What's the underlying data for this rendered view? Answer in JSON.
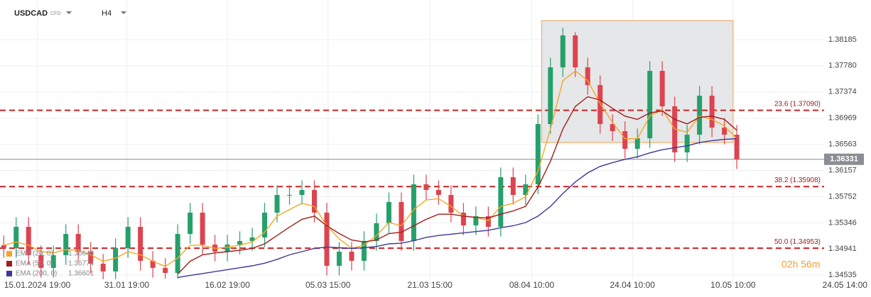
{
  "header": {
    "symbol": "USDCAD",
    "market": "CFD",
    "timeframe": "H4"
  },
  "chart_data": {
    "type": "candlestick",
    "xlim": [
      -0.3,
      69.8
    ],
    "xticks": [
      {
        "value": 2.7,
        "label": "15.01.2024 19:00"
      },
      {
        "value": 9.9,
        "label": "31.01 19:00"
      },
      {
        "value": 18,
        "label": "16.02 19:00"
      },
      {
        "value": 26.1,
        "label": "05.03 15:00"
      },
      {
        "value": 34.3,
        "label": "21.03 15:00"
      },
      {
        "value": 42.5,
        "label": "08.04 10:00"
      },
      {
        "value": 50.6,
        "label": "24.04 10:00"
      },
      {
        "value": 58.7,
        "label": "10.05 10:00"
      },
      {
        "value": 67.7,
        "label": "24.05 14:00"
      }
    ],
    "ylim": [
      1.3446,
      1.388
    ],
    "yticks": [
      1.38185,
      {
        "value": 1.3778,
        "label": "1.37780"
      },
      1.37374,
      1.36969,
      1.36563,
      1.36157,
      1.35752,
      1.35346,
      1.34941,
      1.34535
    ],
    "grid": true,
    "up_color": "#26a06b",
    "down_color": "#dc4450",
    "open": [
      1.35,
      1.34954,
      1.35284,
      1.34844,
      1.34647,
      1.34844,
      1.35174,
      1.34899,
      1.34713,
      1.34592,
      1.34954,
      1.35284,
      1.34757,
      1.34647,
      1.3457,
      1.35174,
      1.35504,
      1.35009,
      1.34899,
      1.35009,
      1.35064,
      1.35119,
      1.35504,
      1.35778,
      1.35778,
      1.35855,
      1.35504,
      1.3468,
      1.34899,
      1.34757,
      1.35064,
      1.35339,
      1.35668,
      1.35064,
      1.35943,
      1.35855,
      1.35778,
      1.35504,
      1.35306,
      1.35449,
      1.35284,
      1.36053,
      1.35778,
      1.35943,
      1.36877,
      1.37756,
      1.38251,
      1.37756,
      1.37481,
      1.36877,
      1.36767,
      1.36493,
      1.36657,
      1.37701,
      1.37152,
      1.36438,
      1.36712,
      1.37317,
      1.36822,
      1.36712
    ],
    "high": [
      1.3515,
      1.35434,
      1.35434,
      1.34994,
      1.34994,
      1.35324,
      1.35324,
      1.35049,
      1.34863,
      1.35104,
      1.35434,
      1.35434,
      1.34907,
      1.34797,
      1.35324,
      1.35654,
      1.35654,
      1.35159,
      1.35159,
      1.35214,
      1.35269,
      1.35654,
      1.35928,
      1.35928,
      1.36005,
      1.36005,
      1.35654,
      1.35049,
      1.35049,
      1.35214,
      1.35489,
      1.35818,
      1.35818,
      1.36093,
      1.36093,
      1.36005,
      1.35928,
      1.35654,
      1.35599,
      1.35599,
      1.36203,
      1.36203,
      1.36093,
      1.37027,
      1.37906,
      1.3837,
      1.38301,
      1.37906,
      1.37631,
      1.37027,
      1.36917,
      1.36807,
      1.37851,
      1.37851,
      1.37302,
      1.36862,
      1.37467,
      1.37467,
      1.36972,
      1.36862
    ],
    "low": [
      1.34804,
      1.34804,
      1.34694,
      1.34497,
      1.34497,
      1.34694,
      1.34749,
      1.34563,
      1.34472,
      1.34472,
      1.34804,
      1.34607,
      1.34497,
      1.3448,
      1.3448,
      1.35024,
      1.34859,
      1.34749,
      1.34749,
      1.34859,
      1.34914,
      1.34969,
      1.35354,
      1.35628,
      1.35628,
      1.35354,
      1.3453,
      1.3453,
      1.34607,
      1.34607,
      1.34914,
      1.35189,
      1.34914,
      1.34914,
      1.35705,
      1.35628,
      1.35354,
      1.35156,
      1.35156,
      1.35134,
      1.35134,
      1.35628,
      1.35628,
      1.35793,
      1.36727,
      1.37606,
      1.37606,
      1.37331,
      1.36727,
      1.36617,
      1.36343,
      1.36343,
      1.36507,
      1.37002,
      1.36288,
      1.36288,
      1.36562,
      1.36672,
      1.36562,
      1.36181
    ],
    "close": [
      1.34954,
      1.35284,
      1.34844,
      1.34647,
      1.34844,
      1.35174,
      1.34899,
      1.34713,
      1.34592,
      1.34954,
      1.35284,
      1.34757,
      1.34647,
      1.3457,
      1.35174,
      1.35504,
      1.35009,
      1.34899,
      1.35009,
      1.35064,
      1.35119,
      1.35504,
      1.35778,
      1.35778,
      1.35855,
      1.35504,
      1.3468,
      1.34899,
      1.34757,
      1.35064,
      1.35339,
      1.35668,
      1.35064,
      1.35943,
      1.35855,
      1.35778,
      1.35504,
      1.35306,
      1.35449,
      1.35284,
      1.36053,
      1.35778,
      1.35943,
      1.36877,
      1.37756,
      1.38251,
      1.37756,
      1.37481,
      1.36877,
      1.36767,
      1.36493,
      1.36657,
      1.37701,
      1.37152,
      1.36438,
      1.36712,
      1.37317,
      1.36822,
      1.36712,
      1.36331
    ],
    "series": [
      {
        "name": "EMA (20, 0)",
        "last": 1.36649,
        "color": "#f5a623",
        "values": [
          1.35,
          1.3505,
          1.35,
          1.349,
          1.3488,
          1.3493,
          1.3492,
          1.3485,
          1.3475,
          1.348,
          1.349,
          1.3485,
          1.3475,
          1.3467,
          1.348,
          1.35,
          1.35,
          1.3495,
          1.3497,
          1.35,
          1.3505,
          1.352,
          1.3545,
          1.3555,
          1.3565,
          1.356,
          1.353,
          1.351,
          1.3495,
          1.35,
          1.3515,
          1.3535,
          1.353,
          1.3555,
          1.357,
          1.3572,
          1.356,
          1.3545,
          1.3543,
          1.3538,
          1.356,
          1.3565,
          1.3575,
          1.3615,
          1.368,
          1.3755,
          1.377,
          1.3755,
          1.372,
          1.369,
          1.3665,
          1.3665,
          1.37,
          1.371,
          1.368,
          1.3675,
          1.37,
          1.3695,
          1.3685,
          1.3665
        ]
      },
      {
        "name": "EMA (50, 0)",
        "last": 1.36774,
        "color": "#a31c1c",
        "values": [
          null,
          null,
          null,
          null,
          null,
          null,
          null,
          null,
          null,
          null,
          null,
          null,
          null,
          null,
          1.3455,
          1.3475,
          1.3485,
          1.3488,
          1.349,
          1.3492,
          1.3495,
          1.3502,
          1.3515,
          1.3528,
          1.354,
          1.3545,
          1.353,
          1.3518,
          1.3508,
          1.3505,
          1.3508,
          1.3518,
          1.352,
          1.353,
          1.354,
          1.3548,
          1.3548,
          1.3545,
          1.3543,
          1.3542,
          1.3548,
          1.3553,
          1.356,
          1.359,
          1.363,
          1.368,
          1.3715,
          1.373,
          1.3725,
          1.3712,
          1.37,
          1.3695,
          1.3705,
          1.3708,
          1.3695,
          1.3688,
          1.3698,
          1.37,
          1.3695,
          1.3678
        ]
      },
      {
        "name": "EMA (200, 0)",
        "last": 1.36601,
        "color": "#3b3899",
        "values": [
          null,
          null,
          null,
          null,
          null,
          null,
          null,
          null,
          null,
          null,
          null,
          null,
          null,
          null,
          1.345,
          1.3453,
          1.3456,
          1.3459,
          1.3462,
          1.3465,
          1.3468,
          1.3472,
          1.3478,
          1.3485,
          1.349,
          1.3495,
          1.3497,
          1.3496,
          1.3495,
          1.3496,
          1.3498,
          1.3502,
          1.3503,
          1.3507,
          1.3512,
          1.3515,
          1.3517,
          1.3519,
          1.3521,
          1.3523,
          1.3527,
          1.353,
          1.3535,
          1.3545,
          1.356,
          1.358,
          1.3598,
          1.3612,
          1.3622,
          1.3628,
          1.3633,
          1.3637,
          1.3643,
          1.3648,
          1.3651,
          1.3654,
          1.3659,
          1.3662,
          1.3664,
          1.3665
        ]
      }
    ],
    "levels": [
      {
        "label": "23.6 (1.37090)",
        "value": 1.3709
      },
      {
        "label": "38.2 (1.35908)",
        "value": 1.35908
      },
      {
        "label": "50.0 (1.34953)",
        "value": 1.34953
      }
    ],
    "level_color": "#cc2222",
    "current_price": 1.36331,
    "box": {
      "x": [
        43.3,
        58.7
      ],
      "y": [
        1.36591,
        1.38481
      ],
      "fill": "#e3e4e7",
      "stroke": "#f0a050"
    },
    "timer": "02h 56m"
  }
}
